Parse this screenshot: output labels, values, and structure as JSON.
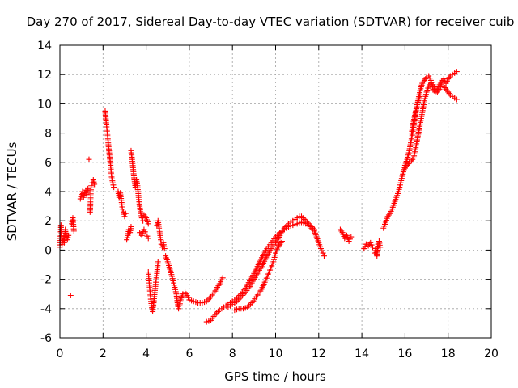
{
  "chart_data": {
    "type": "scatter",
    "title": "Day 270 of 2017, Sidereal Day-to-day VTEC variation (SDTVAR) for receiver cuib",
    "xlabel": "GPS time / hours",
    "ylabel": "SDTVAR / TECUs",
    "xlim": [
      0,
      20
    ],
    "ylim": [
      -6,
      14
    ],
    "xticks": [
      "0",
      "2",
      "4",
      "6",
      "8",
      "10",
      "12",
      "14",
      "16",
      "18",
      "20"
    ],
    "yticks": [
      "-6",
      "-4",
      "-2",
      "0",
      "2",
      "4",
      "6",
      "8",
      "10",
      "12",
      "14"
    ],
    "grid": true,
    "marker": "+",
    "color": "#ff0000",
    "series": [
      {
        "name": "SDTVAR",
        "segments": [
          [
            [
              0.0,
              0.2
            ],
            [
              0.05,
              1.7
            ],
            [
              0.1,
              0.4
            ],
            [
              0.15,
              0.8
            ],
            [
              0.2,
              0.5
            ],
            [
              0.25,
              1.4
            ],
            [
              0.3,
              0.9
            ],
            [
              0.35,
              0.7
            ],
            [
              0.4,
              1.0
            ]
          ],
          [
            [
              0.5,
              -3.1
            ]
          ],
          [
            [
              0.55,
              1.8
            ],
            [
              0.6,
              2.2
            ],
            [
              0.65,
              1.3
            ]
          ],
          [
            [
              0.95,
              3.5
            ],
            [
              1.0,
              3.8
            ],
            [
              1.05,
              4.0
            ],
            [
              1.1,
              3.6
            ],
            [
              1.15,
              3.9
            ],
            [
              1.2,
              4.1
            ],
            [
              1.25,
              3.8
            ],
            [
              1.3,
              4.2
            ]
          ],
          [
            [
              1.35,
              6.2
            ]
          ],
          [
            [
              1.4,
              2.6
            ],
            [
              1.45,
              4.4
            ],
            [
              1.5,
              4.6
            ],
            [
              1.55,
              4.8
            ],
            [
              1.6,
              4.5
            ]
          ],
          [
            [
              2.1,
              9.5
            ],
            [
              2.15,
              8.7
            ],
            [
              2.2,
              8.0
            ],
            [
              2.25,
              7.2
            ],
            [
              2.3,
              6.5
            ],
            [
              2.35,
              5.8
            ],
            [
              2.4,
              5.0
            ],
            [
              2.45,
              4.6
            ],
            [
              2.5,
              4.3
            ]
          ],
          [
            [
              2.7,
              4.0
            ],
            [
              2.75,
              3.6
            ],
            [
              2.8,
              3.9
            ],
            [
              2.85,
              3.4
            ],
            [
              2.9,
              2.8
            ]
          ],
          [
            [
              2.95,
              2.6
            ],
            [
              3.0,
              2.3
            ],
            [
              3.05,
              2.5
            ]
          ],
          [
            [
              3.1,
              0.7
            ],
            [
              3.15,
              1.0
            ],
            [
              3.2,
              1.4
            ],
            [
              3.25,
              1.2
            ],
            [
              3.3,
              1.6
            ]
          ],
          [
            [
              3.3,
              6.8
            ],
            [
              3.35,
              6.2
            ],
            [
              3.4,
              5.5
            ],
            [
              3.45,
              4.8
            ],
            [
              3.5,
              4.3
            ],
            [
              3.55,
              4.8
            ],
            [
              3.6,
              4.4
            ],
            [
              3.65,
              3.6
            ],
            [
              3.7,
              3.0
            ],
            [
              3.75,
              2.5
            ],
            [
              3.8,
              2.2
            ],
            [
              3.85,
              2.0
            ]
          ],
          [
            [
              3.7,
              1.2
            ],
            [
              3.8,
              1.0
            ],
            [
              3.9,
              1.4
            ],
            [
              4.0,
              1.1
            ],
            [
              4.1,
              0.8
            ]
          ],
          [
            [
              3.9,
              2.4
            ],
            [
              4.0,
              2.2
            ],
            [
              4.1,
              1.8
            ]
          ],
          [
            [
              4.1,
              -1.5
            ],
            [
              4.15,
              -2.4
            ],
            [
              4.2,
              -3.2
            ],
            [
              4.25,
              -3.8
            ],
            [
              4.3,
              -4.2
            ],
            [
              4.35,
              -3.6
            ],
            [
              4.4,
              -2.9
            ],
            [
              4.45,
              -2.2
            ],
            [
              4.5,
              -1.6
            ],
            [
              4.55,
              -0.8
            ]
          ],
          [
            [
              4.5,
              1.7
            ],
            [
              4.55,
              2.0
            ],
            [
              4.6,
              1.5
            ],
            [
              4.65,
              1.0
            ],
            [
              4.7,
              0.4
            ],
            [
              4.75,
              0.2
            ],
            [
              4.8,
              0.5
            ],
            [
              4.85,
              0.1
            ]
          ],
          [
            [
              4.9,
              -0.4
            ],
            [
              5.0,
              -0.8
            ],
            [
              5.1,
              -1.3
            ],
            [
              5.2,
              -1.8
            ],
            [
              5.3,
              -2.4
            ],
            [
              5.4,
              -3.0
            ],
            [
              5.45,
              -3.6
            ],
            [
              5.5,
              -4.0
            ],
            [
              5.55,
              -3.8
            ],
            [
              5.6,
              -3.4
            ],
            [
              5.7,
              -3.0
            ],
            [
              5.8,
              -2.9
            ],
            [
              5.9,
              -3.1
            ],
            [
              6.0,
              -3.4
            ],
            [
              6.2,
              -3.5
            ],
            [
              6.4,
              -3.6
            ],
            [
              6.6,
              -3.6
            ],
            [
              6.8,
              -3.5
            ],
            [
              7.0,
              -3.2
            ],
            [
              7.2,
              -2.8
            ],
            [
              7.4,
              -2.3
            ],
            [
              7.55,
              -1.9
            ]
          ],
          [
            [
              6.8,
              -4.9
            ],
            [
              7.0,
              -4.8
            ],
            [
              7.2,
              -4.4
            ],
            [
              7.4,
              -4.1
            ],
            [
              7.6,
              -3.9
            ],
            [
              7.8,
              -3.7
            ],
            [
              8.0,
              -3.5
            ],
            [
              8.2,
              -3.3
            ],
            [
              8.4,
              -3.0
            ],
            [
              8.6,
              -2.6
            ],
            [
              8.8,
              -2.1
            ],
            [
              9.0,
              -1.6
            ],
            [
              9.2,
              -1.0
            ],
            [
              9.4,
              -0.4
            ],
            [
              9.6,
              0.1
            ],
            [
              9.8,
              0.5
            ],
            [
              10.0,
              0.9
            ],
            [
              10.2,
              1.2
            ],
            [
              10.4,
              1.4
            ],
            [
              10.6,
              1.6
            ],
            [
              10.8,
              1.7
            ],
            [
              11.0,
              1.8
            ],
            [
              11.2,
              1.9
            ],
            [
              11.4,
              1.8
            ],
            [
              11.6,
              1.6
            ],
            [
              11.8,
              1.3
            ],
            [
              11.9,
              0.9
            ],
            [
              12.0,
              0.5
            ],
            [
              12.1,
              0.1
            ],
            [
              12.2,
              -0.2
            ],
            [
              12.25,
              -0.4
            ]
          ],
          [
            [
              7.8,
              -3.9
            ],
            [
              8.0,
              -3.7
            ],
            [
              8.2,
              -3.5
            ],
            [
              8.4,
              -3.2
            ],
            [
              8.6,
              -2.9
            ],
            [
              8.8,
              -2.5
            ],
            [
              9.0,
              -2.0
            ],
            [
              9.2,
              -1.5
            ],
            [
              9.4,
              -1.0
            ],
            [
              9.6,
              -0.4
            ],
            [
              9.8,
              0.1
            ],
            [
              10.0,
              0.5
            ],
            [
              10.2,
              1.0
            ],
            [
              10.4,
              1.5
            ],
            [
              10.6,
              1.8
            ],
            [
              10.8,
              2.0
            ],
            [
              11.0,
              2.2
            ],
            [
              11.1,
              2.3
            ],
            [
              11.2,
              2.3
            ],
            [
              11.4,
              2.0
            ],
            [
              11.6,
              1.7
            ],
            [
              11.8,
              1.4
            ]
          ],
          [
            [
              8.1,
              -4.1
            ],
            [
              8.3,
              -4.0
            ],
            [
              8.5,
              -4.0
            ],
            [
              8.7,
              -3.9
            ],
            [
              8.9,
              -3.6
            ],
            [
              9.1,
              -3.2
            ],
            [
              9.3,
              -2.8
            ],
            [
              9.5,
              -2.2
            ],
            [
              9.7,
              -1.5
            ],
            [
              9.9,
              -0.8
            ],
            [
              10.0,
              -0.2
            ],
            [
              10.1,
              0.2
            ],
            [
              10.2,
              0.4
            ],
            [
              10.3,
              0.6
            ]
          ],
          [
            [
              13.0,
              1.4
            ],
            [
              13.1,
              1.2
            ],
            [
              13.2,
              0.8
            ],
            [
              13.3,
              1.0
            ],
            [
              13.4,
              0.6
            ],
            [
              13.5,
              0.9
            ]
          ],
          [
            [
              14.1,
              0.1
            ],
            [
              14.2,
              0.4
            ],
            [
              14.3,
              0.3
            ],
            [
              14.4,
              0.5
            ],
            [
              14.5,
              0.2
            ]
          ],
          [
            [
              14.6,
              -0.2
            ],
            [
              14.65,
              0.1
            ],
            [
              14.7,
              -0.4
            ],
            [
              14.75,
              0.4
            ],
            [
              14.8,
              0.6
            ],
            [
              14.85,
              0.2
            ]
          ],
          [
            [
              15.0,
              1.5
            ],
            [
              15.1,
              1.9
            ],
            [
              15.2,
              2.3
            ],
            [
              15.3,
              2.5
            ],
            [
              15.4,
              2.8
            ],
            [
              15.5,
              3.2
            ],
            [
              15.6,
              3.6
            ],
            [
              15.7,
              4.0
            ],
            [
              15.8,
              4.6
            ],
            [
              15.9,
              5.2
            ],
            [
              16.0,
              5.8
            ],
            [
              16.1,
              6.2
            ],
            [
              16.2,
              6.8
            ],
            [
              16.3,
              7.6
            ],
            [
              16.4,
              8.4
            ],
            [
              16.5,
              9.4
            ],
            [
              16.6,
              10.2
            ],
            [
              16.7,
              10.9
            ],
            [
              16.8,
              11.4
            ],
            [
              16.9,
              11.6
            ],
            [
              17.0,
              11.8
            ],
            [
              17.1,
              11.9
            ],
            [
              17.2,
              11.6
            ],
            [
              17.3,
              11.0
            ],
            [
              17.4,
              10.8
            ],
            [
              17.5,
              11.0
            ],
            [
              17.6,
              11.3
            ],
            [
              17.7,
              11.5
            ],
            [
              17.8,
              11.7
            ],
            [
              17.9,
              11.4
            ],
            [
              18.0,
              11.7
            ],
            [
              18.1,
              11.9
            ],
            [
              18.2,
              12.0
            ],
            [
              18.3,
              12.1
            ],
            [
              18.4,
              12.2
            ]
          ],
          [
            [
              16.0,
              5.6
            ],
            [
              16.1,
              5.8
            ],
            [
              16.2,
              6.0
            ],
            [
              16.3,
              6.1
            ],
            [
              16.4,
              6.3
            ],
            [
              16.5,
              7.0
            ],
            [
              16.6,
              7.8
            ],
            [
              16.7,
              8.6
            ],
            [
              16.8,
              9.4
            ],
            [
              16.9,
              10.2
            ],
            [
              17.0,
              10.8
            ],
            [
              17.1,
              11.2
            ],
            [
              17.2,
              11.4
            ],
            [
              17.3,
              11.3
            ],
            [
              17.4,
              11.0
            ],
            [
              17.5,
              10.8
            ],
            [
              17.6,
              11.0
            ],
            [
              17.7,
              11.3
            ],
            [
              17.8,
              11.2
            ],
            [
              17.9,
              11.0
            ],
            [
              18.0,
              10.8
            ],
            [
              18.1,
              10.6
            ],
            [
              18.2,
              10.5
            ],
            [
              18.3,
              10.4
            ],
            [
              18.4,
              10.3
            ]
          ],
          [
            [
              16.3,
              8.0
            ],
            [
              16.4,
              8.8
            ],
            [
              16.5,
              9.5
            ],
            [
              16.6,
              10.1
            ],
            [
              16.7,
              10.6
            ]
          ]
        ]
      }
    ]
  }
}
